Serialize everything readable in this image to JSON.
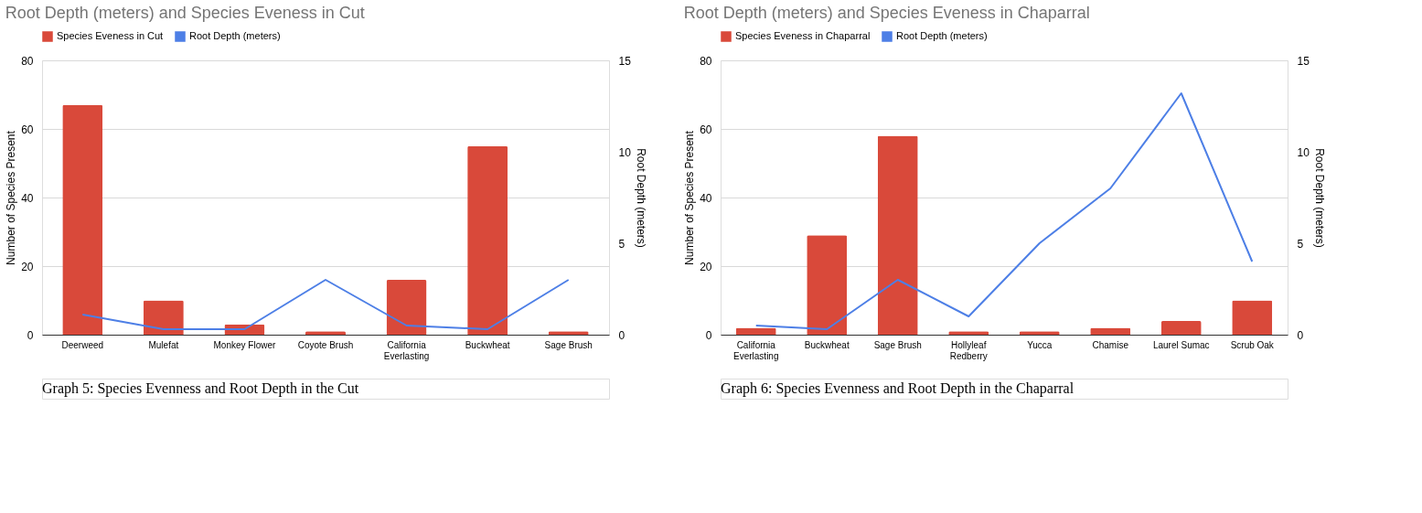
{
  "chart_data": [
    {
      "type": "bar",
      "title": "Root Depth (meters) and Species Eveness in Cut",
      "ylabel": "Number of Species Present",
      "y2label": "Root Depth (meters)",
      "categories": [
        "Deerweed",
        "Mulefat",
        "Monkey Flower",
        "Coyote Brush",
        "California Everlasting",
        "Buckwheat",
        "Sage Brush"
      ],
      "series": [
        {
          "name": "Species Eveness in Cut",
          "color": "#d9493a",
          "values": [
            67,
            10,
            3,
            1,
            16,
            55,
            1
          ]
        },
        {
          "name": "Root Depth (meters)",
          "type": "line",
          "axis": "y2",
          "color": "#4d7fe6",
          "values": [
            1.1,
            0.3,
            0.3,
            3,
            0.5,
            0.3,
            3
          ]
        }
      ],
      "ylim": [
        0,
        80
      ],
      "yticks": [
        0,
        20,
        40,
        60,
        80
      ],
      "y2lim": [
        0,
        15
      ],
      "y2ticks": [
        0,
        5,
        10,
        15
      ],
      "grid": "y",
      "legend": "top",
      "annotations": [
        "Graph 5: Species Evenness and Root Depth in the Cut"
      ]
    },
    {
      "type": "bar",
      "title": "Root Depth (meters) and Species Eveness in Chaparral",
      "ylabel": "Number of Species Present",
      "y2label": "Root Depth (meters)",
      "categories": [
        "California Everlasting",
        "Buckwheat",
        "Sage Brush",
        "Hollyleaf Redberry",
        "Yucca",
        "Chamise",
        "Laurel Sumac",
        "Scrub Oak"
      ],
      "series": [
        {
          "name": "Species Eveness in Chaparral",
          "color": "#d9493a",
          "values": [
            2,
            29,
            58,
            1,
            1,
            2,
            4,
            10
          ]
        },
        {
          "name": "Root Depth (meters)",
          "type": "line",
          "axis": "y2",
          "color": "#4d7fe6",
          "values": [
            0.5,
            0.3,
            3,
            1,
            5,
            8,
            13.2,
            4
          ]
        }
      ],
      "ylim": [
        0,
        80
      ],
      "yticks": [
        0,
        20,
        40,
        60,
        80
      ],
      "y2lim": [
        0,
        15
      ],
      "y2ticks": [
        0,
        5,
        10,
        15
      ],
      "grid": "y",
      "legend": "top",
      "annotations": [
        "Graph 6: Species Evenness and Root Depth in the Chaparral"
      ]
    }
  ]
}
